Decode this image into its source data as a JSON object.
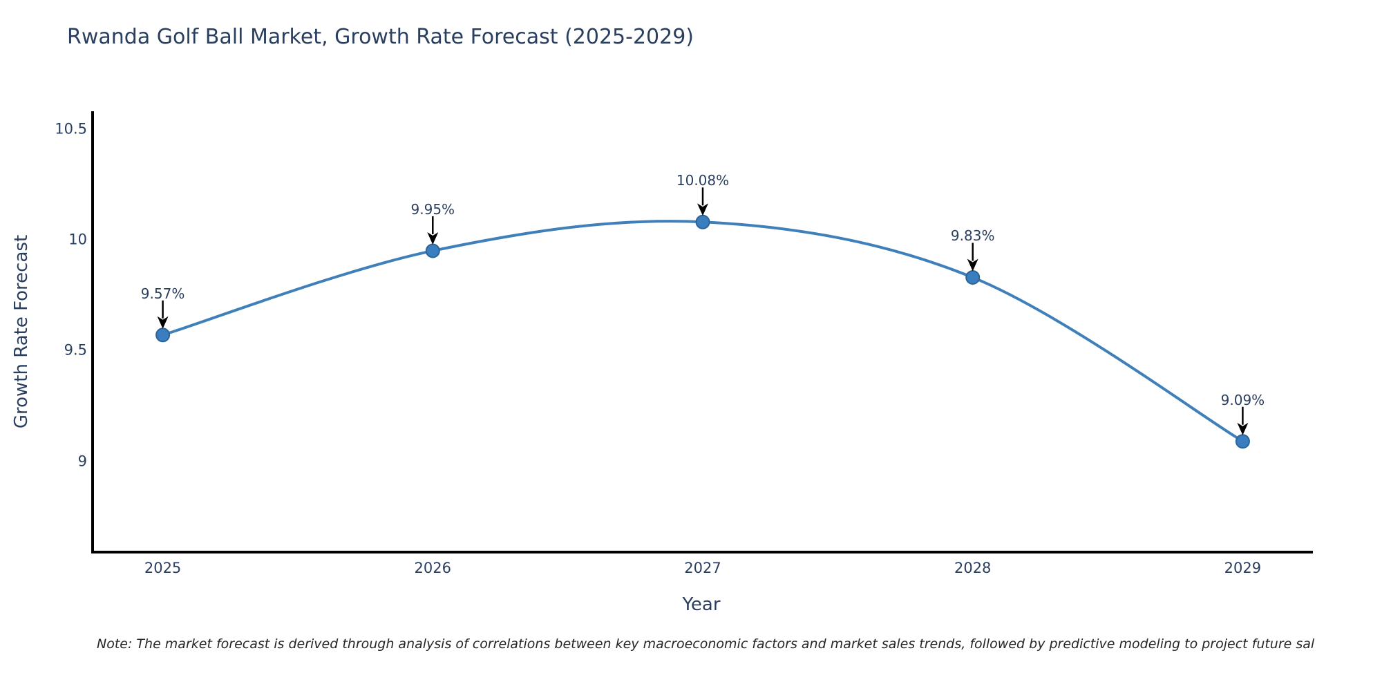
{
  "title": "Rwanda Golf Ball Market, Growth Rate Forecast (2025-2029)",
  "note": "Note: The market forecast is derived through analysis of correlations between key macroeconomic factors and market sales trends, followed by predictive modeling to project future sal",
  "chart_data": {
    "type": "line",
    "title": "Rwanda Golf Ball Market, Growth Rate Forecast (2025-2029)",
    "x": [
      2025,
      2026,
      2027,
      2028,
      2029
    ],
    "y": [
      9.57,
      9.95,
      10.08,
      9.83,
      9.09
    ],
    "series": [
      {
        "name": "Growth Rate Forecast",
        "values": [
          9.57,
          9.95,
          10.08,
          9.83,
          9.09
        ]
      }
    ],
    "point_labels": [
      "9.57%",
      "9.95%",
      "10.08%",
      "9.83%",
      "9.09%"
    ],
    "xlabel": "Year",
    "ylabel": "Growth Rate Forecast",
    "xlim": [
      2024.74,
      2029.26
    ],
    "ylim": [
      8.59,
      10.58
    ],
    "xticks": [
      2025,
      2026,
      2027,
      2028,
      2029
    ],
    "xtick_labels": [
      "2025",
      "2026",
      "2027",
      "2028",
      "2029"
    ],
    "yticks": [
      9,
      9.5,
      10,
      10.5
    ],
    "ytick_labels": [
      "9",
      "9.5",
      "10",
      "10.5"
    ],
    "line_shape": "spline",
    "grid": false,
    "legend_position": "none",
    "colors": {
      "line": "#3f7fba",
      "marker_fill": "#3a7ebf",
      "marker_stroke": "#2c6496",
      "axis": "#000000",
      "text": "#2a3f5f",
      "annotation_arrow": "#000000"
    }
  }
}
